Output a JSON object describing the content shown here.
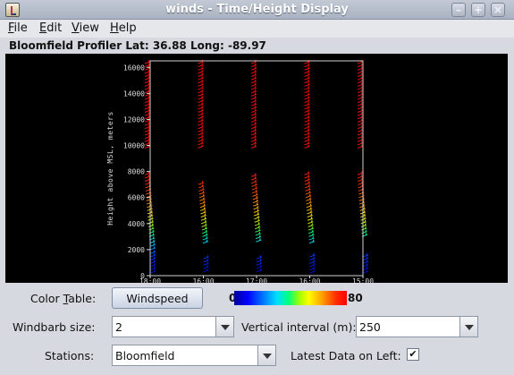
{
  "window": {
    "title": "winds - Time/Height Display",
    "buttons": {
      "minimize": "–",
      "maximize": "+",
      "close": "×"
    }
  },
  "menu": {
    "items": [
      {
        "label": "File",
        "accel": "F"
      },
      {
        "label": "Edit",
        "accel": "E"
      },
      {
        "label": "View",
        "accel": "V"
      },
      {
        "label": "Help",
        "accel": "H"
      }
    ]
  },
  "location_label": "Bloomfield Profiler Lat: 36.88  Long: -89.97",
  "chart_data": {
    "type": "windbarb-time-height",
    "ylabel": "Height above MSL, meters",
    "ylim": [
      0,
      16500
    ],
    "yticks": [
      "0",
      "2000",
      "4000",
      "6000",
      "8000",
      "10000",
      "12000",
      "14000",
      "16000"
    ],
    "xticks": [
      "18:00",
      "16:00",
      "17:00",
      "16:00",
      "15:00"
    ],
    "grid": false,
    "profiles": [
      {
        "column": 0,
        "segments": [
          [
            200,
            1800
          ],
          [
            2000,
            7800
          ],
          [
            9800,
            16500
          ]
        ]
      },
      {
        "column": 1,
        "segments": [
          [
            300,
            1500
          ],
          [
            2500,
            7000
          ],
          [
            9800,
            16500
          ]
        ]
      },
      {
        "column": 2,
        "segments": [
          [
            300,
            1500
          ],
          [
            2600,
            7800
          ],
          [
            9800,
            16500
          ]
        ]
      },
      {
        "column": 3,
        "segments": [
          [
            200,
            1500
          ],
          [
            2500,
            7800
          ],
          [
            9800,
            16500
          ]
        ]
      },
      {
        "column": 4,
        "segments": [
          [
            200,
            1500
          ],
          [
            3000,
            7800
          ],
          [
            9800,
            16500
          ]
        ]
      }
    ],
    "color_scale": [
      0,
      80
    ]
  },
  "controls": {
    "color_table_label": "Color Table:",
    "color_table_accel": "T",
    "color_table_button": "Windspeed",
    "colorbar_min": "0",
    "colorbar_max": "80",
    "windbarb_label": "Windbarb size:",
    "windbarb_value": "2",
    "vertical_label": "Vertical interval (m):",
    "vertical_value": "250",
    "stations_label": "Stations:",
    "stations_value": "Bloomfield",
    "latest_label": "Latest Data on Left:",
    "latest_checked": "✔"
  }
}
